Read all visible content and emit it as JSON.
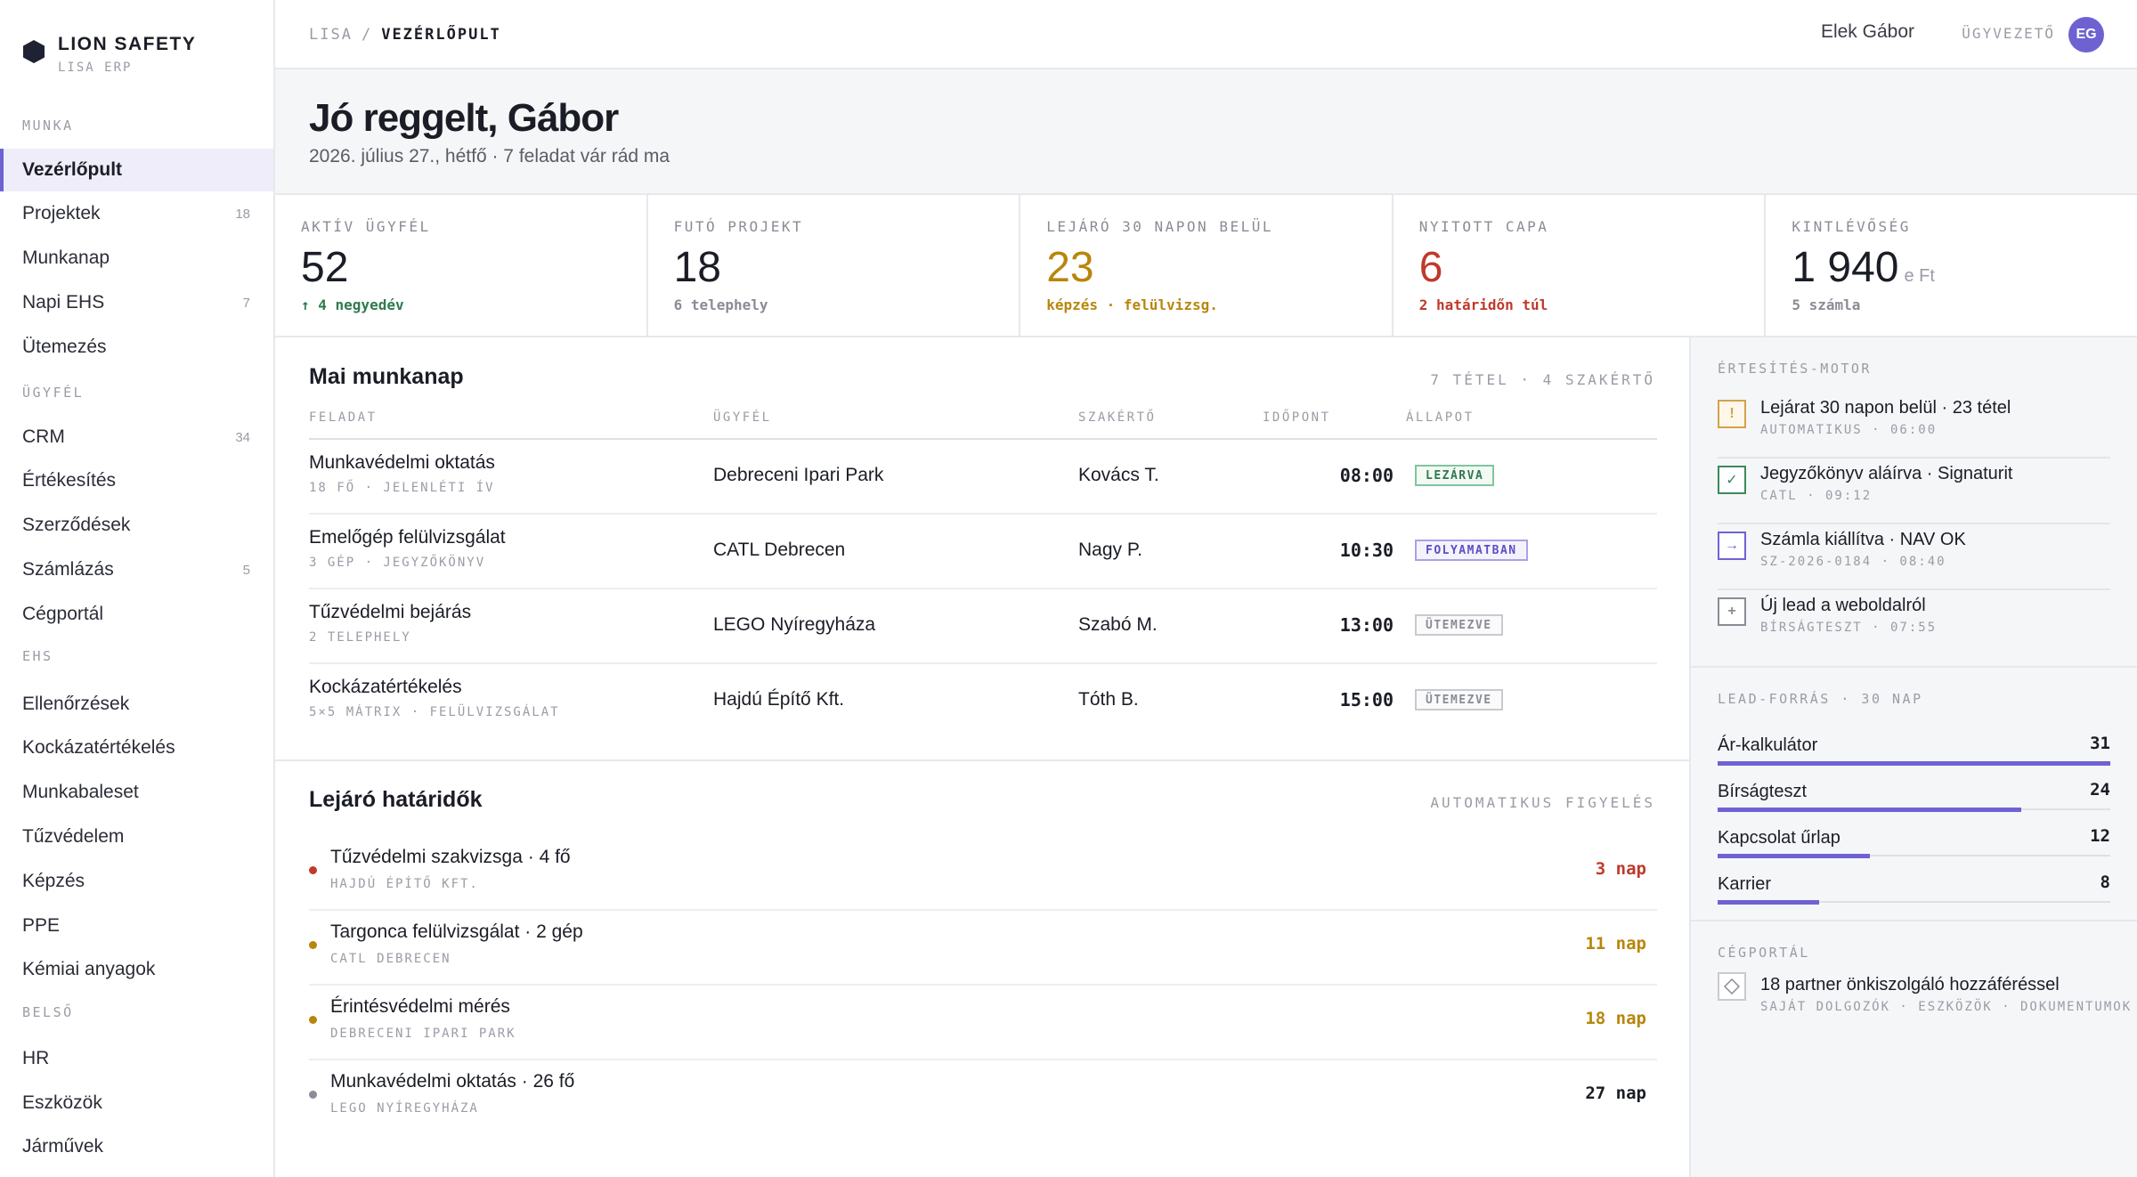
{
  "brand": {
    "name": "LION SAFETY",
    "sub": "LISA ERP"
  },
  "sidebar": {
    "sections": [
      {
        "label": "MUNKA",
        "items": [
          {
            "label": "Vezérlőpult",
            "count": "",
            "active": true
          },
          {
            "label": "Projektek",
            "count": "18"
          },
          {
            "label": "Munkanap",
            "count": ""
          },
          {
            "label": "Napi EHS",
            "count": "7"
          },
          {
            "label": "Ütemezés",
            "count": ""
          }
        ]
      },
      {
        "label": "ÜGYFÉL",
        "items": [
          {
            "label": "CRM",
            "count": "34"
          },
          {
            "label": "Értékesítés",
            "count": ""
          },
          {
            "label": "Szerződések",
            "count": ""
          },
          {
            "label": "Számlázás",
            "count": "5"
          },
          {
            "label": "Cégportál",
            "count": ""
          }
        ]
      },
      {
        "label": "EHS",
        "items": [
          {
            "label": "Ellenőrzések",
            "count": ""
          },
          {
            "label": "Kockázatértékelés",
            "count": ""
          },
          {
            "label": "Munkabaleset",
            "count": ""
          },
          {
            "label": "Tűzvédelem",
            "count": ""
          },
          {
            "label": "Képzés",
            "count": ""
          },
          {
            "label": "PPE",
            "count": ""
          },
          {
            "label": "Kémiai anyagok",
            "count": ""
          }
        ]
      },
      {
        "label": "BELSŐ",
        "items": [
          {
            "label": "HR",
            "count": ""
          },
          {
            "label": "Eszközök",
            "count": ""
          },
          {
            "label": "Járművek",
            "count": ""
          }
        ]
      }
    ]
  },
  "topbar": {
    "crumb_root": "LISA",
    "crumb_sep": "/",
    "crumb_current": "VEZÉRLŐPULT",
    "user_name": "Elek Gábor",
    "user_role": "ÜGYVEZETŐ",
    "avatar_initials": "EG"
  },
  "greeting": {
    "title": "Jó reggelt, Gábor",
    "subtitle": "2026. július 27., hétfő · 7 feladat vár rád ma"
  },
  "kpis": [
    {
      "label": "AKTÍV ÜGYFÉL",
      "value": "52",
      "unit": "",
      "note": "↑ 4 negyedév",
      "value_color": "#1b1d26",
      "note_color": "#2f7a4f"
    },
    {
      "label": "FUTÓ PROJEKT",
      "value": "18",
      "unit": "",
      "note": "6 telephely",
      "value_color": "#1b1d26",
      "note_color": "#8a8c96"
    },
    {
      "label": "LEJÁRÓ 30 NAPON BELÜL",
      "value": "23",
      "unit": "",
      "note": "képzés · felülvizsg.",
      "value_color": "#b8860b",
      "note_color": "#b8860b"
    },
    {
      "label": "NYITOTT CAPA",
      "value": "6",
      "unit": "",
      "note": "2 határidőn túl",
      "value_color": "#c0392b",
      "note_color": "#c0392b"
    },
    {
      "label": "KINTLÉVŐSÉG",
      "value": "1 940",
      "unit": "e Ft",
      "note": "5 számla",
      "value_color": "#1b1d26",
      "note_color": "#8a8c96"
    }
  ],
  "today": {
    "title": "Mai munkanap",
    "meta": "7 TÉTEL · 4 SZAKÉRTŐ",
    "columns": [
      "FELADAT",
      "ÜGYFÉL",
      "SZAKÉRTŐ",
      "IDŐPONT",
      "ÁLLAPOT"
    ],
    "rows": [
      {
        "task": "Munkavédelmi oktatás",
        "detail": "18 FŐ · JELENLÉTI ÍV",
        "client": "Debreceni Ipari Park",
        "expert": "Kovács T.",
        "time": "08:00",
        "status": "LEZÁRVA",
        "status_kind": "green"
      },
      {
        "task": "Emelőgép felülvizsgálat",
        "detail": "3 GÉP · JEGYZŐKÖNYV",
        "client": "CATL Debrecen",
        "expert": "Nagy P.",
        "time": "10:30",
        "status": "FOLYAMATBAN",
        "status_kind": "purple"
      },
      {
        "task": "Tűzvédelmi bejárás",
        "detail": "2 TELEPHELY",
        "client": "LEGO Nyíregyháza",
        "expert": "Szabó M.",
        "time": "13:00",
        "status": "ÜTEMEZVE",
        "status_kind": "gray"
      },
      {
        "task": "Kockázatértékelés",
        "detail": "5×5 MÁTRIX · FELÜLVIZSGÁLAT",
        "client": "Hajdú Építő Kft.",
        "expert": "Tóth B.",
        "time": "15:00",
        "status": "ÜTEMEZVE",
        "status_kind": "gray"
      }
    ]
  },
  "deadlines": {
    "title": "Lejáró határidők",
    "meta": "AUTOMATIKUS FIGYELÉS",
    "rows": [
      {
        "title": "Tűzvédelmi szakvizsga · 4 fő",
        "sub": "HAJDÚ ÉPÍTŐ KFT.",
        "days": "3 nap",
        "color": "#c0392b"
      },
      {
        "title": "Targonca felülvizsgálat · 2 gép",
        "sub": "CATL DEBRECEN",
        "days": "11 nap",
        "color": "#b8860b"
      },
      {
        "title": "Érintésvédelmi mérés",
        "sub": "DEBRECENI IPARI PARK",
        "days": "18 nap",
        "color": "#b8860b"
      },
      {
        "title": "Munkavédelmi oktatás · 26 fő",
        "sub": "LEGO NYÍREGYHÁZA",
        "days": "27 nap",
        "color": "#8a8c96",
        "days_color": "#1b1d26"
      }
    ]
  },
  "notifications": {
    "title": "ÉRTESÍTÉS-MOTOR",
    "items": [
      {
        "icon": "alert-icon",
        "glyph": "!",
        "color": "#d4a24a",
        "title": "Lejárat 30 napon belül · 23 tétel",
        "sub": "AUTOMATIKUS · 06:00"
      },
      {
        "icon": "check-icon",
        "glyph": "✓",
        "color": "#3b8a5a",
        "title": "Jegyzőkönyv aláírva · Signaturit",
        "sub": "CATL · 09:12"
      },
      {
        "icon": "arrow-right-icon",
        "glyph": "→",
        "color": "#6e62d3",
        "title": "Számla kiállítva · NAV OK",
        "sub": "SZ-2026-0184 · 08:40"
      },
      {
        "icon": "plus-icon",
        "glyph": "+",
        "color": "#8a8c96",
        "title": "Új lead a weboldalról",
        "sub": "BÍRSÁGTESZT · 07:55"
      }
    ]
  },
  "leads": {
    "title": "LEAD-FORRÁS · 30 NAP",
    "max": 31,
    "items": [
      {
        "name": "Ár-kalkulátor",
        "value": 31
      },
      {
        "name": "Bírságteszt",
        "value": 24
      },
      {
        "name": "Kapcsolat űrlap",
        "value": 12
      },
      {
        "name": "Karrier",
        "value": 8
      }
    ]
  },
  "portal": {
    "title": "CÉGPORTÁL",
    "item_title": "18 partner önkiszolgáló hozzáféréssel",
    "item_sub": "SAJÁT DOLGOZÓK · ESZKÖZÖK · DOKUMENTUMOK",
    "icon": "diamond-icon"
  }
}
